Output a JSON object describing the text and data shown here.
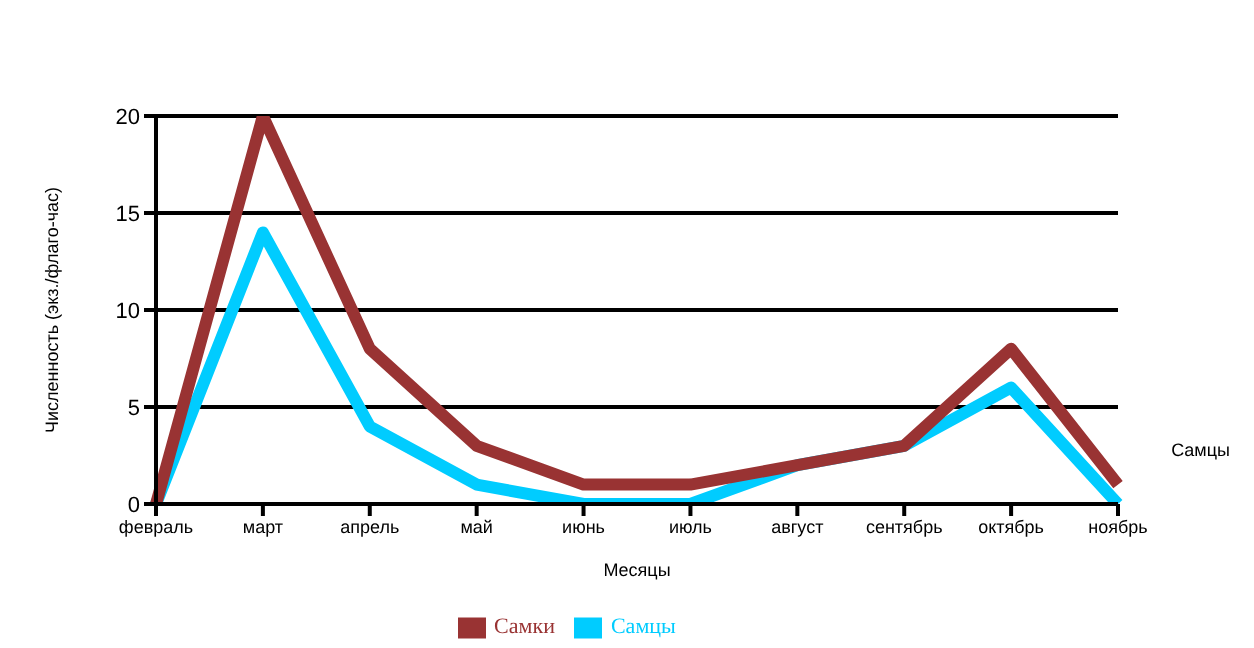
{
  "chart_data": {
    "type": "line",
    "xlabel": "Месяцы",
    "ylabel": "Численность (экз./флаго-час)",
    "categories": [
      "февраль",
      "март",
      "апрель",
      "май",
      "июнь",
      "июль",
      "август",
      "сентябрь",
      "октябрь",
      "ноябрь"
    ],
    "series": [
      {
        "name": "Самцы",
        "color": "#00ccff",
        "values": [
          0,
          14,
          4,
          1,
          0,
          0,
          2,
          3,
          6,
          0
        ]
      },
      {
        "name": "Самки",
        "color": "#993333",
        "values": [
          0,
          20,
          8,
          3,
          1,
          1,
          2,
          3,
          8,
          1
        ]
      }
    ],
    "ylim": [
      0,
      20
    ],
    "yticks": [
      0,
      5,
      10,
      15,
      20
    ],
    "grid": "y",
    "legend": "bottom",
    "marker": "none",
    "line_style": "solid",
    "annotations": [
      "Самцы"
    ]
  }
}
